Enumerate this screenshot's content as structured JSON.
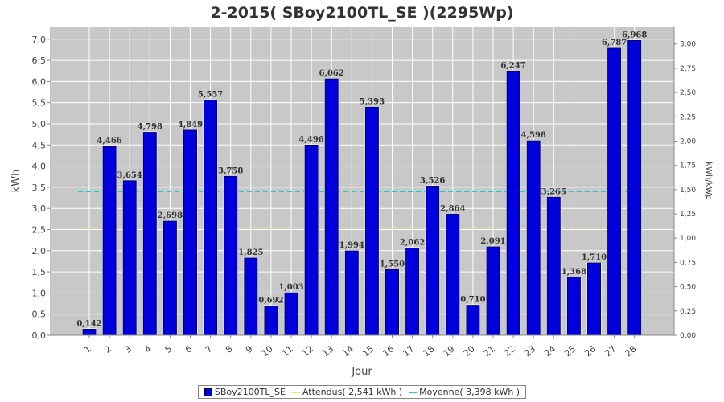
{
  "chart_data": {
    "type": "bar",
    "title": "2-2015( SBoy2100TL_SE )(2295Wp)",
    "xlabel": "Jour",
    "ylabel": "kWh",
    "y2label": "kWh/kWp",
    "ylim": [
      0,
      7.3
    ],
    "y2lim": [
      0,
      3.18
    ],
    "yticks": [
      "0,0",
      "0,5",
      "1,0",
      "1,5",
      "2,0",
      "2,5",
      "3,0",
      "3,5",
      "4,0",
      "4,5",
      "5,0",
      "5,5",
      "6,0",
      "6,5",
      "7,0"
    ],
    "y2ticks": [
      "0,00",
      "0,25",
      "0,50",
      "0,75",
      "1,00",
      "1,25",
      "1,50",
      "1,75",
      "2,00",
      "2,25",
      "2,50",
      "2,75",
      "3,00"
    ],
    "categories": [
      "1",
      "2",
      "3",
      "4",
      "5",
      "6",
      "7",
      "8",
      "9",
      "10",
      "11",
      "12",
      "13",
      "14",
      "15",
      "16",
      "17",
      "18",
      "19",
      "20",
      "21",
      "22",
      "23",
      "24",
      "25",
      "26",
      "27",
      "28"
    ],
    "series": [
      {
        "name": "SBoy2100TL_SE",
        "color": "#0000dd",
        "values": [
          0.142,
          4.466,
          3.654,
          4.798,
          2.698,
          4.849,
          5.557,
          3.758,
          1.825,
          0.692,
          1.003,
          4.496,
          6.062,
          1.994,
          5.393,
          1.55,
          2.062,
          3.526,
          2.864,
          0.71,
          2.091,
          6.247,
          4.598,
          3.265,
          1.368,
          1.71,
          6.787,
          6.968
        ],
        "labels": [
          "0,142",
          "4,466",
          "3,654",
          "4,798",
          "2,698",
          "4,849",
          "5,557",
          "3,758",
          "1,825",
          "0,692",
          "1,003",
          "4,496",
          "6,062",
          "1,994",
          "5,393",
          "1,550",
          "2,062",
          "3,526",
          "2,864",
          "0,710",
          "2,091",
          "6,247",
          "4,598",
          "3,265",
          "1,368",
          "1,710",
          "6,787",
          "6,968"
        ]
      }
    ],
    "reference_lines": [
      {
        "name": "Attendus( 2,541 kWh )",
        "value": 2.541,
        "color": "#e8e86a"
      },
      {
        "name": "Moyenne( 3,398 kWh )",
        "value": 3.398,
        "color": "#22cccc"
      }
    ],
    "plot_background": "#c8c8c8",
    "grid": true,
    "legend_position": "bottom"
  }
}
